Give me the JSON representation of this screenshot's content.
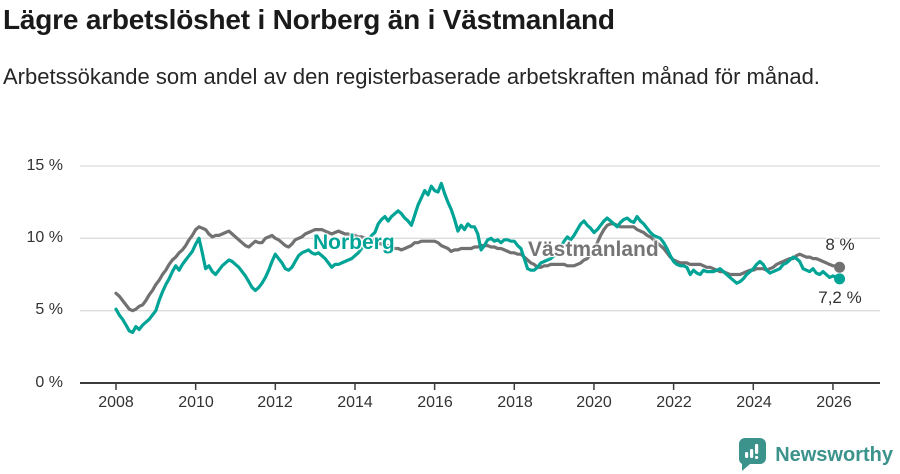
{
  "title": "Lägre arbetslöshet i Norberg än i Västmanland",
  "subtitle": "Arbetssökande som andel av den registerbaserade arbetskraften månad för månad.",
  "labels": {
    "norberg": "Norberg",
    "vastmanland": "Västmanland",
    "end_vastmanland": "8 %",
    "end_norberg": "7,2 %"
  },
  "footer": {
    "brand": "Newsworthy"
  },
  "colors": {
    "norberg": "#00a496",
    "vastmanland": "#717171",
    "grid": "#dcdcdc",
    "axis": "#3c3c3c",
    "text": "#333333",
    "brand": "#3b938c"
  },
  "chart_data": {
    "type": "line",
    "title": "Lägre arbetslöshet i Norberg än i Västmanland",
    "subtitle": "Arbetssökande som andel av den registerbaserade arbetskraften månad för månad.",
    "unit": "%",
    "x_start_year": 2008,
    "points_per_year": 12,
    "ylim": [
      0,
      15
    ],
    "grid": true,
    "x_ticks": [
      "2008",
      "2010",
      "2012",
      "2014",
      "2016",
      "2018",
      "2020",
      "2022",
      "2024",
      "2026"
    ],
    "y_ticks": [
      {
        "label": "15 %",
        "value": 15
      },
      {
        "label": "10 %",
        "value": 10
      },
      {
        "label": "5 %",
        "value": 5
      },
      {
        "label": "0 %",
        "value": 0
      }
    ],
    "series": [
      {
        "name": "Västmanland",
        "color": "#717171",
        "end_label": "8 %",
        "end_value": 8.0,
        "values": [
          6.2,
          6.0,
          5.7,
          5.4,
          5.1,
          5.0,
          5.1,
          5.3,
          5.4,
          5.7,
          6.1,
          6.4,
          6.8,
          7.1,
          7.5,
          7.8,
          8.2,
          8.5,
          8.7,
          9.0,
          9.2,
          9.5,
          9.9,
          10.2,
          10.6,
          10.8,
          10.7,
          10.6,
          10.3,
          10.1,
          10.2,
          10.2,
          10.3,
          10.4,
          10.5,
          10.3,
          10.1,
          9.9,
          9.7,
          9.5,
          9.4,
          9.6,
          9.8,
          9.7,
          9.7,
          10.0,
          10.1,
          10.2,
          10.0,
          9.9,
          9.7,
          9.5,
          9.4,
          9.6,
          9.9,
          10.0,
          10.1,
          10.3,
          10.4,
          10.5,
          10.6,
          10.6,
          10.6,
          10.5,
          10.4,
          10.3,
          10.4,
          10.5,
          10.4,
          10.3,
          10.3,
          10.2,
          10.2,
          10.1,
          10.1,
          10.0,
          9.9,
          9.9,
          9.8,
          9.7,
          9.6,
          9.5,
          9.5,
          9.4,
          9.3,
          9.3,
          9.2,
          9.3,
          9.4,
          9.5,
          9.7,
          9.7,
          9.8,
          9.8,
          9.8,
          9.8,
          9.8,
          9.7,
          9.5,
          9.4,
          9.3,
          9.1,
          9.2,
          9.2,
          9.3,
          9.3,
          9.3,
          9.3,
          9.4,
          9.4,
          9.5,
          9.5,
          9.5,
          9.4,
          9.4,
          9.3,
          9.3,
          9.2,
          9.1,
          9.0,
          9.0,
          8.9,
          8.9,
          8.7,
          8.5,
          8.3,
          8.2,
          8.0,
          8.0,
          8.1,
          8.1,
          8.2,
          8.2,
          8.2,
          8.2,
          8.2,
          8.1,
          8.1,
          8.1,
          8.2,
          8.3,
          8.5,
          8.6,
          8.9,
          9.2,
          9.7,
          10.2,
          10.6,
          10.9,
          11.0,
          11.0,
          10.9,
          10.8,
          10.8,
          10.8,
          10.8,
          10.8,
          10.6,
          10.5,
          10.4,
          10.2,
          10.1,
          9.9,
          9.7,
          9.5,
          9.3,
          9.0,
          8.7,
          8.5,
          8.4,
          8.3,
          8.3,
          8.3,
          8.2,
          8.2,
          8.2,
          8.2,
          8.1,
          8.0,
          8.0,
          7.9,
          7.8,
          7.7,
          7.7,
          7.6,
          7.5,
          7.5,
          7.5,
          7.5,
          7.6,
          7.7,
          7.8,
          7.8,
          7.9,
          7.9,
          7.9,
          7.8,
          7.9,
          8.0,
          8.2,
          8.3,
          8.4,
          8.5,
          8.6,
          8.6,
          8.8,
          8.9,
          8.8,
          8.7,
          8.7,
          8.6,
          8.6,
          8.5,
          8.4,
          8.3,
          8.2,
          8.1,
          8.1,
          8.0
        ]
      },
      {
        "name": "Norberg",
        "color": "#00a496",
        "end_label": "7,2 %",
        "end_value": 7.2,
        "values": [
          5.1,
          4.7,
          4.4,
          4.0,
          3.6,
          3.5,
          3.9,
          3.7,
          4.0,
          4.2,
          4.4,
          4.7,
          5.0,
          5.7,
          6.3,
          6.8,
          7.2,
          7.7,
          8.1,
          7.8,
          8.2,
          8.5,
          8.8,
          9.1,
          9.6,
          10.0,
          9.0,
          7.9,
          8.1,
          7.7,
          7.5,
          7.8,
          8.1,
          8.3,
          8.5,
          8.4,
          8.2,
          8.0,
          7.7,
          7.4,
          7.0,
          6.6,
          6.4,
          6.6,
          6.9,
          7.3,
          7.8,
          8.4,
          8.9,
          8.6,
          8.3,
          7.9,
          7.8,
          8.0,
          8.4,
          8.8,
          9.0,
          9.1,
          9.2,
          9.0,
          8.9,
          9.0,
          8.8,
          8.6,
          8.3,
          8.0,
          8.2,
          8.2,
          8.3,
          8.4,
          8.5,
          8.6,
          8.8,
          9.0,
          9.3,
          9.6,
          9.9,
          10.2,
          10.4,
          11.0,
          11.3,
          11.5,
          11.2,
          11.5,
          11.7,
          11.9,
          11.7,
          11.4,
          11.2,
          10.9,
          11.6,
          12.3,
          12.8,
          13.3,
          13.0,
          13.6,
          13.3,
          13.2,
          13.8,
          13.1,
          12.5,
          12.0,
          11.3,
          10.5,
          10.9,
          10.6,
          11.0,
          10.8,
          10.8,
          10.3,
          9.2,
          9.5,
          9.9,
          10.0,
          9.8,
          9.9,
          9.7,
          9.9,
          9.9,
          9.8,
          9.8,
          9.5,
          9.3,
          8.6,
          7.9,
          7.8,
          7.8,
          8.0,
          8.3,
          8.4,
          8.5,
          8.6,
          8.8,
          9.1,
          9.4,
          9.8,
          10.1,
          9.9,
          10.2,
          10.6,
          11.0,
          11.2,
          10.9,
          10.7,
          10.4,
          10.6,
          10.9,
          11.2,
          11.4,
          11.2,
          11.0,
          10.8,
          11.1,
          11.3,
          11.4,
          11.2,
          11.1,
          11.5,
          11.2,
          11.0,
          10.7,
          10.4,
          10.2,
          10.1,
          10.0,
          9.7,
          9.3,
          8.8,
          8.4,
          8.2,
          8.1,
          8.1,
          8.0,
          7.5,
          7.8,
          7.6,
          7.5,
          7.8,
          7.7,
          7.7,
          7.7,
          7.8,
          7.9,
          7.7,
          7.5,
          7.3,
          7.1,
          6.9,
          7.0,
          7.2,
          7.5,
          7.7,
          7.9,
          8.2,
          8.4,
          8.2,
          7.8,
          7.6,
          7.7,
          7.8,
          7.9,
          8.2,
          8.3,
          8.5,
          8.7,
          8.6,
          8.4,
          7.9,
          7.8,
          7.7,
          7.9,
          7.6,
          7.5,
          7.7,
          7.5,
          7.3,
          7.4,
          7.3,
          7.2
        ]
      }
    ]
  }
}
